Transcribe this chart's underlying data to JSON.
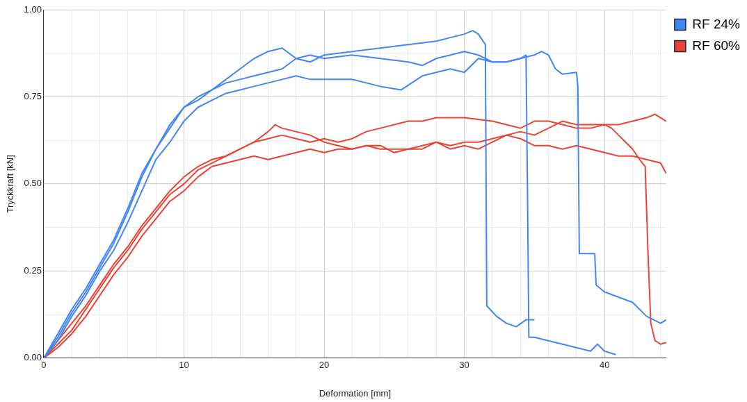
{
  "chart_data": {
    "type": "line",
    "xlabel": "Deformation [mm]",
    "ylabel": "Tryckkraft [kN]",
    "legend": "right",
    "grid": true,
    "xlim": [
      0,
      44.4
    ],
    "ylim": [
      0,
      1
    ],
    "xticks": [
      0,
      {
        "value": 2,
        "label": null
      },
      {
        "value": 4,
        "label": null
      },
      {
        "value": 6,
        "label": null
      },
      {
        "value": 8,
        "label": null
      },
      10,
      {
        "value": 12,
        "label": null
      },
      {
        "value": 14,
        "label": null
      },
      {
        "value": 16,
        "label": null
      },
      {
        "value": 18,
        "label": null
      },
      20,
      {
        "value": 22,
        "label": null
      },
      {
        "value": 24,
        "label": null
      },
      {
        "value": 26,
        "label": null
      },
      {
        "value": 28,
        "label": null
      },
      30,
      {
        "value": 32,
        "label": null
      },
      {
        "value": 34,
        "label": null
      },
      {
        "value": 36,
        "label": null
      },
      {
        "value": 38,
        "label": null
      },
      40,
      {
        "value": 42,
        "label": null
      },
      {
        "value": 44,
        "label": null
      }
    ],
    "yticks": [
      {
        "value": 0,
        "label": "0.00"
      },
      {
        "value": 0.125,
        "label": null
      },
      {
        "value": 0.25,
        "label": "0.25"
      },
      {
        "value": 0.375,
        "label": null
      },
      {
        "value": 0.5,
        "label": "0.50"
      },
      {
        "value": 0.625,
        "label": null
      },
      {
        "value": 0.75,
        "label": "0.75"
      },
      {
        "value": 0.875,
        "label": null
      },
      {
        "value": 1,
        "label": "1.00"
      }
    ],
    "series": [
      {
        "name": "RF 24%",
        "color": "#4285f4",
        "x": [
          0,
          1,
          2,
          3,
          4,
          5,
          6,
          7,
          8,
          9,
          10,
          11,
          12,
          13,
          14,
          15,
          16,
          17,
          18,
          19,
          20,
          22,
          24,
          26,
          28,
          29,
          30,
          30.6,
          31,
          31.5,
          31.6,
          32.3,
          33,
          33.7,
          34.4,
          35
        ],
        "values": [
          0,
          0.07,
          0.14,
          0.2,
          0.27,
          0.34,
          0.43,
          0.53,
          0.6,
          0.67,
          0.72,
          0.74,
          0.77,
          0.8,
          0.83,
          0.86,
          0.88,
          0.89,
          0.86,
          0.85,
          0.87,
          0.88,
          0.89,
          0.9,
          0.91,
          0.92,
          0.93,
          0.94,
          0.93,
          0.9,
          0.15,
          0.12,
          0.1,
          0.09,
          0.11,
          0.11
        ]
      },
      {
        "color": "#4285f4",
        "x": [
          0,
          1,
          2,
          3,
          4,
          5,
          6,
          7,
          8,
          9,
          10,
          11,
          12,
          13,
          14,
          15,
          16,
          17,
          18,
          19,
          20,
          22,
          24,
          26,
          27,
          28,
          29,
          30,
          31,
          32,
          33,
          34,
          34.4,
          34.5,
          34.6,
          35,
          36,
          37,
          38,
          39,
          39.5,
          40,
          40.8
        ],
        "values": [
          0,
          0.06,
          0.13,
          0.19,
          0.26,
          0.33,
          0.42,
          0.52,
          0.6,
          0.66,
          0.72,
          0.75,
          0.77,
          0.79,
          0.8,
          0.81,
          0.82,
          0.83,
          0.86,
          0.87,
          0.86,
          0.87,
          0.86,
          0.85,
          0.84,
          0.86,
          0.87,
          0.88,
          0.87,
          0.85,
          0.85,
          0.86,
          0.87,
          0.5,
          0.06,
          0.06,
          0.05,
          0.04,
          0.03,
          0.02,
          0.04,
          0.02,
          0.01
        ]
      },
      {
        "color": "#4285f4",
        "x": [
          0,
          1,
          2,
          3,
          4,
          5,
          6,
          7,
          8,
          9,
          10,
          11,
          12,
          13,
          14,
          15,
          16,
          17,
          18,
          19,
          20,
          22,
          24,
          25.5,
          27,
          29,
          30,
          31,
          32,
          33,
          34,
          35,
          35.5,
          36,
          36.5,
          37,
          38,
          38.1,
          38.2,
          39.3,
          39.4,
          40,
          41,
          42,
          43,
          44,
          44.4
        ],
        "values": [
          0,
          0.05,
          0.12,
          0.18,
          0.25,
          0.31,
          0.39,
          0.48,
          0.57,
          0.62,
          0.68,
          0.72,
          0.74,
          0.76,
          0.77,
          0.78,
          0.79,
          0.8,
          0.81,
          0.8,
          0.8,
          0.8,
          0.78,
          0.77,
          0.81,
          0.83,
          0.82,
          0.86,
          0.85,
          0.85,
          0.86,
          0.87,
          0.88,
          0.87,
          0.83,
          0.815,
          0.82,
          0.78,
          0.3,
          0.3,
          0.21,
          0.19,
          0.175,
          0.16,
          0.12,
          0.1,
          0.11
        ]
      },
      {
        "name": "RF 60%",
        "color": "#ea4335",
        "x": [
          0,
          1,
          2,
          3,
          4,
          5,
          6,
          7,
          8,
          9,
          10,
          11,
          12,
          13,
          14,
          15,
          16,
          17,
          18,
          19,
          20,
          21,
          22,
          23,
          24,
          25,
          26,
          27,
          28,
          29,
          30,
          31,
          32,
          33,
          34,
          35,
          36,
          37,
          38,
          39,
          40,
          41,
          42,
          43,
          43.6,
          44,
          44.4
        ],
        "values": [
          0,
          0.05,
          0.1,
          0.15,
          0.21,
          0.27,
          0.32,
          0.38,
          0.43,
          0.48,
          0.52,
          0.55,
          0.57,
          0.58,
          0.6,
          0.62,
          0.63,
          0.64,
          0.63,
          0.62,
          0.63,
          0.62,
          0.63,
          0.65,
          0.66,
          0.67,
          0.68,
          0.68,
          0.69,
          0.69,
          0.69,
          0.685,
          0.68,
          0.67,
          0.66,
          0.68,
          0.68,
          0.67,
          0.66,
          0.66,
          0.67,
          0.67,
          0.68,
          0.69,
          0.7,
          0.69,
          0.68
        ]
      },
      {
        "color": "#ea4335",
        "x": [
          0,
          1,
          2,
          3,
          4,
          5,
          6,
          7,
          8,
          9,
          10,
          11,
          12,
          13,
          14,
          15,
          16,
          16.5,
          17,
          18,
          19,
          20,
          21,
          22,
          23,
          24,
          25,
          26,
          27,
          28,
          29,
          30,
          31,
          32,
          33,
          34,
          35,
          36,
          37,
          38,
          39,
          40,
          40.5,
          41,
          41.5,
          42,
          42.5,
          42.9,
          43.1,
          43.3,
          43.6,
          44,
          44.4
        ],
        "values": [
          0,
          0.04,
          0.08,
          0.14,
          0.2,
          0.26,
          0.31,
          0.37,
          0.42,
          0.47,
          0.5,
          0.54,
          0.56,
          0.58,
          0.6,
          0.62,
          0.65,
          0.67,
          0.66,
          0.65,
          0.64,
          0.62,
          0.61,
          0.6,
          0.61,
          0.6,
          0.6,
          0.6,
          0.61,
          0.62,
          0.6,
          0.61,
          0.6,
          0.62,
          0.64,
          0.65,
          0.64,
          0.66,
          0.68,
          0.67,
          0.67,
          0.67,
          0.66,
          0.64,
          0.62,
          0.6,
          0.57,
          0.55,
          0.3,
          0.1,
          0.05,
          0.04,
          0.045
        ]
      },
      {
        "color": "#ea4335",
        "x": [
          0,
          1,
          2,
          3,
          4,
          5,
          6,
          7,
          8,
          9,
          10,
          11,
          12,
          13,
          14,
          15,
          16,
          17,
          18,
          19,
          20,
          21,
          22,
          23,
          24,
          25,
          26,
          27,
          28,
          29,
          30,
          31,
          32,
          33,
          34,
          35,
          36,
          37,
          38,
          39,
          40,
          41,
          42,
          43,
          44,
          44.4
        ],
        "values": [
          0,
          0.03,
          0.07,
          0.12,
          0.18,
          0.24,
          0.29,
          0.35,
          0.4,
          0.45,
          0.48,
          0.52,
          0.55,
          0.56,
          0.57,
          0.58,
          0.57,
          0.58,
          0.59,
          0.6,
          0.59,
          0.6,
          0.6,
          0.61,
          0.61,
          0.59,
          0.6,
          0.6,
          0.62,
          0.61,
          0.62,
          0.62,
          0.63,
          0.64,
          0.63,
          0.61,
          0.61,
          0.6,
          0.61,
          0.6,
          0.59,
          0.58,
          0.58,
          0.57,
          0.56,
          0.53
        ]
      }
    ]
  }
}
